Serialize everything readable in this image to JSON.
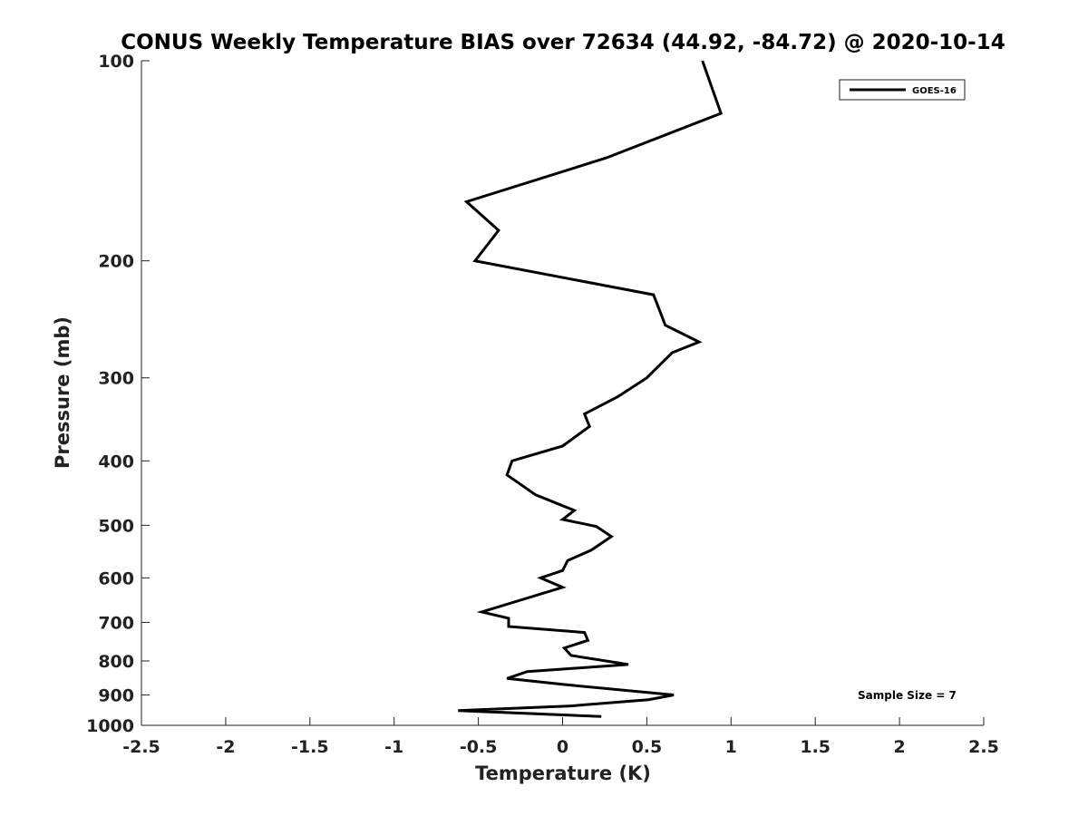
{
  "chart_data": {
    "type": "line",
    "title": "CONUS Weekly Temperature BIAS over 72634 (44.92, -84.72) @ 2020-10-14",
    "xlabel": "Temperature (K)",
    "ylabel": "Pressure (mb)",
    "xlim": [
      -2.5,
      2.5
    ],
    "ylim": [
      100,
      1000
    ],
    "y_scale": "log",
    "y_reversed": false,
    "x_ticks": [
      "-2.5",
      "-2",
      "-1.5",
      "-1",
      "-0.5",
      "0",
      "0.5",
      "1",
      "1.5",
      "2",
      "2.5"
    ],
    "x_tick_values": [
      -2.5,
      -2,
      -1.5,
      -1,
      -0.5,
      0,
      0.5,
      1,
      1.5,
      2,
      2.5
    ],
    "y_ticks": [
      "100",
      "200",
      "300",
      "400",
      "500",
      "600",
      "700",
      "800",
      "900",
      "1000"
    ],
    "y_tick_values": [
      100,
      200,
      300,
      400,
      500,
      600,
      700,
      800,
      900,
      1000
    ],
    "grid": false,
    "legend_position": "top-right",
    "series": [
      {
        "name": "GOES-16",
        "color": "#000000",
        "points": [
          {
            "x": 0.83,
            "y": 100
          },
          {
            "x": 0.94,
            "y": 120
          },
          {
            "x": 0.26,
            "y": 140
          },
          {
            "x": -0.57,
            "y": 163
          },
          {
            "x": -0.38,
            "y": 180
          },
          {
            "x": -0.52,
            "y": 200
          },
          {
            "x": 0.54,
            "y": 225
          },
          {
            "x": 0.61,
            "y": 250
          },
          {
            "x": 0.81,
            "y": 265
          },
          {
            "x": 0.65,
            "y": 275
          },
          {
            "x": 0.5,
            "y": 300
          },
          {
            "x": 0.33,
            "y": 320
          },
          {
            "x": 0.13,
            "y": 340
          },
          {
            "x": 0.16,
            "y": 355
          },
          {
            "x": 0.0,
            "y": 380
          },
          {
            "x": -0.3,
            "y": 400
          },
          {
            "x": -0.33,
            "y": 420
          },
          {
            "x": -0.16,
            "y": 450
          },
          {
            "x": 0.07,
            "y": 475
          },
          {
            "x": 0.0,
            "y": 490
          },
          {
            "x": 0.2,
            "y": 502
          },
          {
            "x": 0.29,
            "y": 520
          },
          {
            "x": 0.17,
            "y": 545
          },
          {
            "x": 0.03,
            "y": 565
          },
          {
            "x": 0.0,
            "y": 585
          },
          {
            "x": -0.13,
            "y": 600
          },
          {
            "x": 0.0,
            "y": 620
          },
          {
            "x": -0.48,
            "y": 675
          },
          {
            "x": -0.32,
            "y": 690
          },
          {
            "x": -0.32,
            "y": 710
          },
          {
            "x": 0.13,
            "y": 725
          },
          {
            "x": 0.15,
            "y": 745
          },
          {
            "x": 0.01,
            "y": 765
          },
          {
            "x": 0.05,
            "y": 785
          },
          {
            "x": 0.39,
            "y": 810
          },
          {
            "x": -0.21,
            "y": 830
          },
          {
            "x": -0.33,
            "y": 850
          },
          {
            "x": 0.05,
            "y": 870
          },
          {
            "x": 0.66,
            "y": 900
          },
          {
            "x": 0.51,
            "y": 915
          },
          {
            "x": 0.05,
            "y": 935
          },
          {
            "x": -0.62,
            "y": 950
          },
          {
            "x": 0.23,
            "y": 970
          }
        ]
      }
    ],
    "annotation": "Sample Size = 7"
  }
}
